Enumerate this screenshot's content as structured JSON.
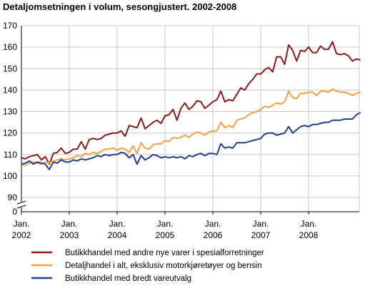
{
  "chart_data": {
    "type": "line",
    "title": "Detaljomsetningen i volum, sesongjustert. 2002-2008",
    "xlabel": "",
    "ylabel": "",
    "ylim": [
      0,
      170
    ],
    "y_axis_break": [
      0,
      90
    ],
    "yticks": [
      0,
      90,
      100,
      110,
      120,
      130,
      140,
      150,
      160,
      170
    ],
    "x_range": [
      "2002-01",
      "2008-12"
    ],
    "xtick_labels": [
      {
        "month": "Jan.",
        "year": "2002"
      },
      {
        "month": "Jan.",
        "year": "2003"
      },
      {
        "month": "Jan.",
        "year": "2004"
      },
      {
        "month": "Jan.",
        "year": "2005"
      },
      {
        "month": "Jan.",
        "year": "2006"
      },
      {
        "month": "Jan.",
        "year": "2007"
      },
      {
        "month": "Jan.",
        "year": "2008"
      }
    ],
    "grid": true,
    "legend_position": "bottom",
    "series": [
      {
        "name": "Butikkhandel med andre nye varer i spesialforretninger",
        "color": "#8b1a1a",
        "values": [
          108.5,
          108.0,
          109.0,
          109.5,
          110.0,
          107.5,
          109.0,
          105.5,
          110.5,
          111.0,
          113.0,
          110.5,
          111.0,
          112.5,
          112.5,
          116.0,
          112.5,
          117.0,
          117.5,
          117.0,
          117.5,
          119.0,
          119.5,
          120.0,
          120.0,
          121.0,
          118.5,
          123.5,
          123.0,
          122.5,
          127.0,
          122.0,
          123.5,
          125.0,
          126.0,
          124.5,
          128.0,
          128.5,
          131.0,
          126.0,
          131.5,
          134.0,
          131.0,
          132.5,
          135.0,
          134.5,
          131.5,
          133.0,
          134.5,
          135.5,
          139.5,
          134.5,
          135.5,
          135.0,
          138.0,
          141.0,
          140.0,
          143.0,
          145.0,
          147.5,
          147.5,
          149.5,
          150.5,
          148.5,
          155.5,
          155.5,
          152.0,
          161.0,
          158.5,
          153.5,
          158.5,
          158.0,
          160.0,
          157.5,
          157.5,
          160.5,
          159.0,
          159.0,
          162.5,
          157.0,
          156.5,
          157.0,
          156.0,
          153.5,
          154.5,
          154.0
        ]
      },
      {
        "name": "Detaljhandel i alt, eksklusiv motorkjøretøyer og bensin",
        "color": "#f5a040",
        "values": [
          105.0,
          105.0,
          106.0,
          106.5,
          106.0,
          105.5,
          106.5,
          106.0,
          107.0,
          107.5,
          108.0,
          107.5,
          108.0,
          108.5,
          109.5,
          109.0,
          110.5,
          110.0,
          111.0,
          110.5,
          111.5,
          112.5,
          112.5,
          113.0,
          112.0,
          113.0,
          112.5,
          111.0,
          114.0,
          110.5,
          115.5,
          113.0,
          112.5,
          114.5,
          115.0,
          115.0,
          116.5,
          116.0,
          118.0,
          117.5,
          118.0,
          119.0,
          118.0,
          119.5,
          120.5,
          120.0,
          119.0,
          120.5,
          121.0,
          121.0,
          125.0,
          122.5,
          123.5,
          122.5,
          126.0,
          126.5,
          127.0,
          128.5,
          129.5,
          130.0,
          131.0,
          132.5,
          132.0,
          133.0,
          134.0,
          133.5,
          134.5,
          139.5,
          136.5,
          136.0,
          138.5,
          138.5,
          139.0,
          139.0,
          137.5,
          139.5,
          139.5,
          139.0,
          140.5,
          139.5,
          139.0,
          139.0,
          138.5,
          137.5,
          138.5,
          139.0
        ]
      },
      {
        "name": "Butikkhandel med bredt vareutvalg",
        "color": "#1f3f8f",
        "values": [
          105.5,
          106.0,
          107.0,
          105.5,
          106.5,
          106.0,
          105.5,
          103.0,
          106.5,
          106.0,
          107.5,
          106.5,
          106.5,
          107.5,
          107.0,
          108.0,
          107.5,
          108.0,
          108.5,
          109.5,
          109.0,
          110.0,
          109.5,
          110.0,
          110.0,
          111.0,
          110.5,
          108.5,
          110.0,
          105.5,
          109.5,
          107.5,
          108.5,
          110.0,
          109.5,
          108.5,
          109.0,
          108.5,
          109.0,
          108.5,
          109.0,
          108.0,
          109.5,
          109.0,
          110.0,
          110.5,
          109.5,
          110.5,
          110.5,
          110.0,
          115.0,
          113.0,
          113.5,
          113.0,
          115.5,
          115.5,
          115.5,
          116.0,
          116.5,
          117.0,
          117.5,
          119.5,
          120.0,
          120.0,
          119.0,
          119.5,
          120.0,
          123.0,
          120.0,
          121.5,
          123.0,
          123.5,
          123.0,
          124.0,
          124.0,
          124.5,
          125.0,
          125.0,
          126.0,
          126.0,
          126.0,
          126.5,
          126.5,
          126.5,
          128.5,
          129.5
        ]
      }
    ]
  }
}
